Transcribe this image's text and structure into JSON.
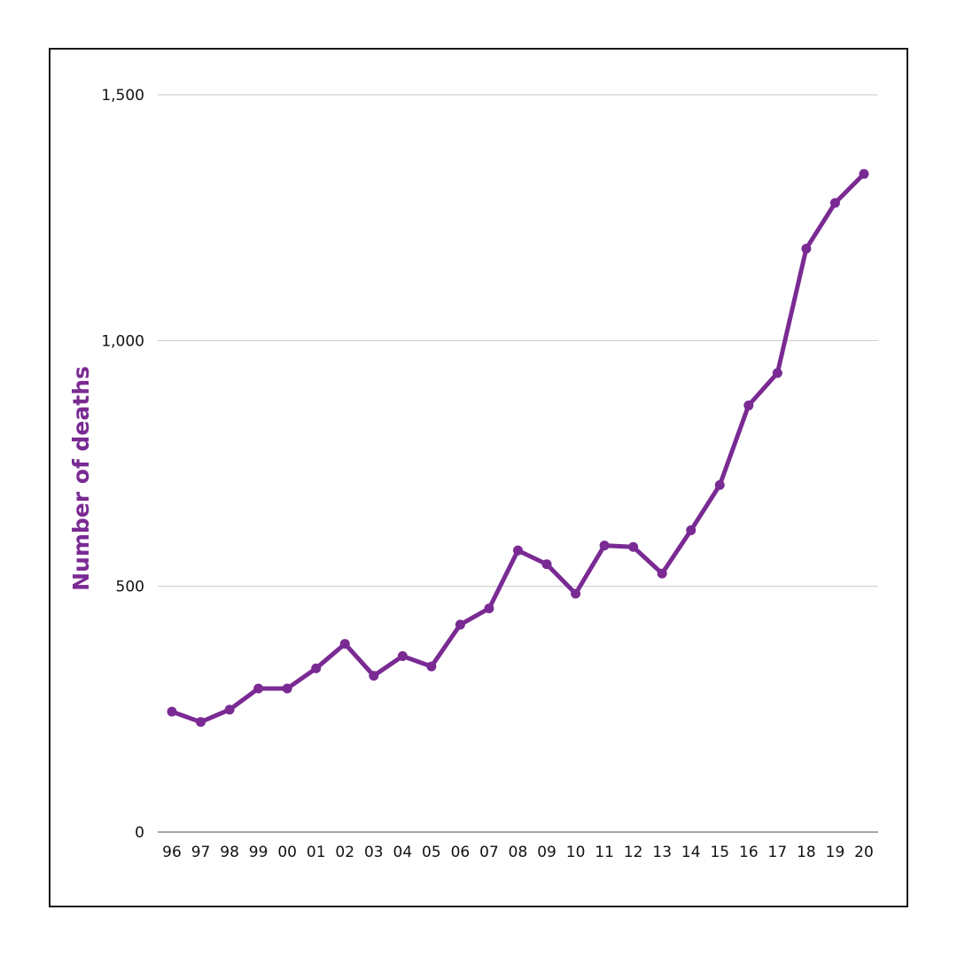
{
  "chart_data": {
    "type": "line",
    "title": "",
    "xlabel": "",
    "ylabel": "Number of deaths",
    "categories": [
      "96",
      "97",
      "98",
      "99",
      "00",
      "01",
      "02",
      "03",
      "04",
      "05",
      "06",
      "07",
      "08",
      "09",
      "10",
      "11",
      "12",
      "13",
      "14",
      "15",
      "16",
      "17",
      "18",
      "19",
      "20"
    ],
    "series": [
      {
        "values": [
          245,
          224,
          249,
          292,
          292,
          333,
          383,
          318,
          358,
          337,
          422,
          455,
          573,
          545,
          485,
          583,
          580,
          526,
          614,
          706,
          868,
          934,
          1187,
          1280,
          1339
        ]
      }
    ],
    "ylim": [
      0,
      1500
    ],
    "yticks": [
      0,
      500,
      1000,
      1500
    ],
    "ytick_labels": [
      "0",
      "500",
      "1,000",
      "1,500"
    ],
    "grid": true,
    "legend": "none"
  },
  "colors": {
    "series": "#7a2a93",
    "axis_title": "#7a2a93",
    "grid": "#c8c8c8",
    "baseline": "#8a8a8a"
  }
}
